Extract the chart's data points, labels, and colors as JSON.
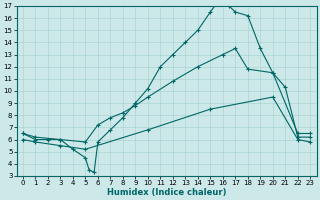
{
  "xlabel": "Humidex (Indice chaleur)",
  "xlim": [
    -0.5,
    23.5
  ],
  "ylim": [
    3,
    17
  ],
  "xticks": [
    0,
    1,
    2,
    3,
    4,
    5,
    6,
    7,
    8,
    9,
    10,
    11,
    12,
    13,
    14,
    15,
    16,
    17,
    18,
    19,
    20,
    21,
    22,
    23
  ],
  "yticks": [
    3,
    4,
    5,
    6,
    7,
    8,
    9,
    10,
    11,
    12,
    13,
    14,
    15,
    16,
    17
  ],
  "bg_color": "#cce8e8",
  "line_color": "#006666",
  "grid_color": "#aad4d4",
  "line1_x": [
    0,
    1,
    2,
    3,
    4,
    5,
    5.3,
    5.7,
    6,
    7,
    8,
    9,
    10,
    11,
    12,
    13,
    14,
    15,
    15.5,
    16,
    16.5,
    17,
    18,
    19,
    20,
    21,
    22,
    23
  ],
  "line1_y": [
    6.5,
    6.0,
    6.0,
    6.0,
    5.2,
    4.5,
    3.5,
    3.3,
    5.8,
    6.8,
    7.8,
    9.0,
    10.2,
    12.0,
    13.0,
    14.0,
    15.0,
    16.5,
    17.2,
    17.3,
    17.0,
    16.5,
    16.2,
    13.5,
    11.5,
    10.3,
    6.2,
    6.2
  ],
  "line2_x": [
    0,
    1,
    3,
    5,
    6,
    7,
    8,
    9,
    10,
    12,
    14,
    16,
    17,
    18,
    20,
    22,
    23
  ],
  "line2_y": [
    6.5,
    6.2,
    6.0,
    5.8,
    7.2,
    7.8,
    8.2,
    8.8,
    9.5,
    10.8,
    12.0,
    13.0,
    13.5,
    11.8,
    11.5,
    6.5,
    6.5
  ],
  "line3_x": [
    0,
    1,
    3,
    5,
    10,
    15,
    20,
    22,
    23
  ],
  "line3_y": [
    6.0,
    5.8,
    5.5,
    5.2,
    6.8,
    8.5,
    9.5,
    6.0,
    5.8
  ]
}
